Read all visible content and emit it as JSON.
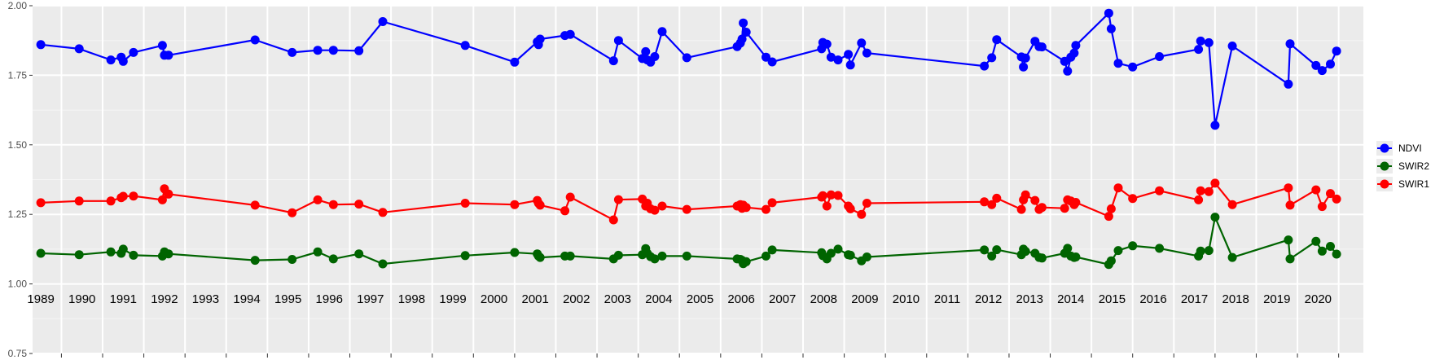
{
  "chart_data": {
    "type": "line",
    "title": "",
    "xlabel": "",
    "ylabel": "",
    "ylim": [
      0.75,
      2.0
    ],
    "y_ticks": [
      "0.75",
      "1.00",
      "1.25",
      "1.50",
      "1.75",
      "2.00"
    ],
    "x_domain": [
      1988.5,
      2020.8
    ],
    "year_labels": [
      {
        "label": "1989",
        "x": 1988.7
      },
      {
        "label": "1990",
        "x": 1989.7
      },
      {
        "label": "1991",
        "x": 1990.7
      },
      {
        "label": "1992",
        "x": 1991.7
      },
      {
        "label": "1993",
        "x": 1992.7
      },
      {
        "label": "1994",
        "x": 1993.7
      },
      {
        "label": "1995",
        "x": 1994.7
      },
      {
        "label": "1996",
        "x": 1995.7
      },
      {
        "label": "1997",
        "x": 1996.7
      },
      {
        "label": "1998",
        "x": 1997.7
      },
      {
        "label": "1999",
        "x": 1998.7
      },
      {
        "label": "2000",
        "x": 1999.7
      },
      {
        "label": "2001",
        "x": 2000.7
      },
      {
        "label": "2002",
        "x": 2001.7
      },
      {
        "label": "2003",
        "x": 2002.7
      },
      {
        "label": "2004",
        "x": 2003.7
      },
      {
        "label": "2005",
        "x": 2004.7
      },
      {
        "label": "2006",
        "x": 2005.7
      },
      {
        "label": "2007",
        "x": 2006.7
      },
      {
        "label": "2008",
        "x": 2007.7
      },
      {
        "label": "2009",
        "x": 2008.7
      },
      {
        "label": "2010",
        "x": 2009.7
      },
      {
        "label": "2011",
        "x": 2010.7
      },
      {
        "label": "2012",
        "x": 2011.7
      },
      {
        "label": "2013",
        "x": 2012.7
      },
      {
        "label": "2014",
        "x": 2013.7
      },
      {
        "label": "2015",
        "x": 2014.7
      },
      {
        "label": "2016",
        "x": 2015.7
      },
      {
        "label": "2017",
        "x": 2016.7
      },
      {
        "label": "2018",
        "x": 2017.7
      },
      {
        "label": "2019",
        "x": 2018.7
      },
      {
        "label": "2020",
        "x": 2019.7
      }
    ],
    "x_ticks": [
      1989.2,
      1990.2,
      1991.2,
      1992.2,
      1993.2,
      1994.2,
      1995.2,
      1996.2,
      1997.2,
      1998.2,
      1999.2,
      2000.2,
      2001.2,
      2002.2,
      2003.2,
      2004.2,
      2005.2,
      2006.2,
      2007.2,
      2008.2,
      2009.2,
      2010.2,
      2011.2,
      2012.2,
      2013.2,
      2014.2,
      2015.2,
      2016.2,
      2017.2,
      2018.2,
      2019.2,
      2020.2
    ],
    "legend": {
      "position": "right"
    },
    "series": [
      {
        "name": "NDVI",
        "color": "#0000ff",
        "points": [
          [
            1988.7,
            1.86
          ],
          [
            1989.63,
            1.845
          ],
          [
            1990.4,
            1.805
          ],
          [
            1990.65,
            1.815
          ],
          [
            1990.7,
            1.8
          ],
          [
            1990.95,
            1.832
          ],
          [
            1991.65,
            1.857
          ],
          [
            1991.7,
            1.822
          ],
          [
            1991.8,
            1.822
          ],
          [
            1993.9,
            1.877
          ],
          [
            1994.8,
            1.832
          ],
          [
            1995.42,
            1.84
          ],
          [
            1995.8,
            1.84
          ],
          [
            1996.42,
            1.838
          ],
          [
            1997.0,
            1.943
          ],
          [
            1999.0,
            1.857
          ],
          [
            2000.2,
            1.797
          ],
          [
            2000.75,
            1.87
          ],
          [
            2000.78,
            1.86
          ],
          [
            2000.82,
            1.88
          ],
          [
            2001.42,
            1.893
          ],
          [
            2001.55,
            1.897
          ],
          [
            2002.6,
            1.802
          ],
          [
            2002.72,
            1.875
          ],
          [
            2003.3,
            1.81
          ],
          [
            2003.38,
            1.835
          ],
          [
            2003.42,
            1.805
          ],
          [
            2003.5,
            1.797
          ],
          [
            2003.6,
            1.817
          ],
          [
            2003.78,
            1.907
          ],
          [
            2004.38,
            1.813
          ],
          [
            2005.6,
            1.853
          ],
          [
            2005.68,
            1.866
          ],
          [
            2005.72,
            1.88
          ],
          [
            2005.75,
            1.938
          ],
          [
            2005.82,
            1.905
          ],
          [
            2006.3,
            1.815
          ],
          [
            2006.45,
            1.798
          ],
          [
            2007.65,
            1.845
          ],
          [
            2007.68,
            1.868
          ],
          [
            2007.78,
            1.862
          ],
          [
            2007.88,
            1.815
          ],
          [
            2008.05,
            1.805
          ],
          [
            2008.3,
            1.825
          ],
          [
            2008.35,
            1.787
          ],
          [
            2008.62,
            1.866
          ],
          [
            2008.75,
            1.83
          ],
          [
            2011.6,
            1.783
          ],
          [
            2011.78,
            1.813
          ],
          [
            2011.9,
            1.878
          ],
          [
            2012.5,
            1.816
          ],
          [
            2012.55,
            1.78
          ],
          [
            2012.6,
            1.812
          ],
          [
            2012.83,
            1.872
          ],
          [
            2012.93,
            1.853
          ],
          [
            2013.0,
            1.852
          ],
          [
            2013.55,
            1.8
          ],
          [
            2013.62,
            1.765
          ],
          [
            2013.7,
            1.815
          ],
          [
            2013.78,
            1.83
          ],
          [
            2013.82,
            1.857
          ],
          [
            2014.62,
            1.973
          ],
          [
            2014.68,
            1.917
          ],
          [
            2014.85,
            1.793
          ],
          [
            2015.2,
            1.78
          ],
          [
            2015.85,
            1.817
          ],
          [
            2016.8,
            1.843
          ],
          [
            2016.85,
            1.873
          ],
          [
            2017.05,
            1.867
          ],
          [
            2017.2,
            1.57
          ],
          [
            2017.62,
            1.855
          ],
          [
            2018.98,
            1.718
          ],
          [
            2019.02,
            1.863
          ],
          [
            2019.65,
            1.785
          ],
          [
            2019.8,
            1.767
          ],
          [
            2020.0,
            1.79
          ],
          [
            2020.15,
            1.837
          ]
        ]
      },
      {
        "name": "SWIR2",
        "color": "#006400",
        "points": [
          [
            1988.7,
            1.11
          ],
          [
            1989.63,
            1.105
          ],
          [
            1990.4,
            1.115
          ],
          [
            1990.65,
            1.11
          ],
          [
            1990.7,
            1.125
          ],
          [
            1990.95,
            1.103
          ],
          [
            1991.65,
            1.1
          ],
          [
            1991.7,
            1.115
          ],
          [
            1991.8,
            1.108
          ],
          [
            1993.9,
            1.085
          ],
          [
            1994.8,
            1.088
          ],
          [
            1995.42,
            1.115
          ],
          [
            1995.8,
            1.09
          ],
          [
            1996.42,
            1.108
          ],
          [
            1997.0,
            1.072
          ],
          [
            1999.0,
            1.102
          ],
          [
            2000.2,
            1.113
          ],
          [
            2000.75,
            1.108
          ],
          [
            2000.78,
            1.1
          ],
          [
            2000.82,
            1.095
          ],
          [
            2001.42,
            1.1
          ],
          [
            2001.55,
            1.1
          ],
          [
            2002.6,
            1.09
          ],
          [
            2002.72,
            1.103
          ],
          [
            2003.3,
            1.105
          ],
          [
            2003.38,
            1.127
          ],
          [
            2003.42,
            1.11
          ],
          [
            2003.5,
            1.098
          ],
          [
            2003.6,
            1.09
          ],
          [
            2003.78,
            1.1
          ],
          [
            2004.38,
            1.1
          ],
          [
            2005.6,
            1.09
          ],
          [
            2005.68,
            1.088
          ],
          [
            2005.72,
            1.085
          ],
          [
            2005.75,
            1.073
          ],
          [
            2005.82,
            1.08
          ],
          [
            2006.3,
            1.1
          ],
          [
            2006.45,
            1.122
          ],
          [
            2007.65,
            1.112
          ],
          [
            2007.68,
            1.102
          ],
          [
            2007.78,
            1.09
          ],
          [
            2007.88,
            1.11
          ],
          [
            2008.05,
            1.125
          ],
          [
            2008.3,
            1.105
          ],
          [
            2008.35,
            1.103
          ],
          [
            2008.62,
            1.083
          ],
          [
            2008.75,
            1.097
          ],
          [
            2011.6,
            1.122
          ],
          [
            2011.78,
            1.1
          ],
          [
            2011.9,
            1.123
          ],
          [
            2012.5,
            1.105
          ],
          [
            2012.55,
            1.125
          ],
          [
            2012.6,
            1.117
          ],
          [
            2012.83,
            1.11
          ],
          [
            2012.93,
            1.095
          ],
          [
            2013.0,
            1.093
          ],
          [
            2013.55,
            1.11
          ],
          [
            2013.62,
            1.128
          ],
          [
            2013.7,
            1.1
          ],
          [
            2013.78,
            1.095
          ],
          [
            2013.82,
            1.097
          ],
          [
            2014.62,
            1.07
          ],
          [
            2014.68,
            1.083
          ],
          [
            2014.85,
            1.12
          ],
          [
            2015.2,
            1.137
          ],
          [
            2015.85,
            1.128
          ],
          [
            2016.8,
            1.1
          ],
          [
            2016.85,
            1.118
          ],
          [
            2017.05,
            1.12
          ],
          [
            2017.2,
            1.24
          ],
          [
            2017.62,
            1.095
          ],
          [
            2018.98,
            1.158
          ],
          [
            2019.02,
            1.09
          ],
          [
            2019.65,
            1.153
          ],
          [
            2019.8,
            1.118
          ],
          [
            2020.0,
            1.135
          ],
          [
            2020.15,
            1.107
          ]
        ]
      },
      {
        "name": "SWIR1",
        "color": "#ff0000",
        "points": [
          [
            1988.7,
            1.292
          ],
          [
            1989.63,
            1.298
          ],
          [
            1990.4,
            1.298
          ],
          [
            1990.65,
            1.31
          ],
          [
            1990.7,
            1.315
          ],
          [
            1990.95,
            1.316
          ],
          [
            1991.65,
            1.302
          ],
          [
            1991.7,
            1.342
          ],
          [
            1991.8,
            1.323
          ],
          [
            1993.9,
            1.283
          ],
          [
            1994.8,
            1.256
          ],
          [
            1995.42,
            1.302
          ],
          [
            1995.8,
            1.285
          ],
          [
            1996.42,
            1.287
          ],
          [
            1997.0,
            1.257
          ],
          [
            1999.0,
            1.29
          ],
          [
            2000.2,
            1.285
          ],
          [
            2000.75,
            1.3
          ],
          [
            2000.78,
            1.29
          ],
          [
            2000.82,
            1.283
          ],
          [
            2001.42,
            1.263
          ],
          [
            2001.55,
            1.312
          ],
          [
            2002.6,
            1.23
          ],
          [
            2002.72,
            1.303
          ],
          [
            2003.3,
            1.305
          ],
          [
            2003.38,
            1.28
          ],
          [
            2003.42,
            1.29
          ],
          [
            2003.5,
            1.27
          ],
          [
            2003.6,
            1.265
          ],
          [
            2003.78,
            1.28
          ],
          [
            2004.38,
            1.268
          ],
          [
            2005.6,
            1.28
          ],
          [
            2005.68,
            1.285
          ],
          [
            2005.72,
            1.272
          ],
          [
            2005.75,
            1.283
          ],
          [
            2005.82,
            1.275
          ],
          [
            2006.3,
            1.268
          ],
          [
            2006.45,
            1.292
          ],
          [
            2007.65,
            1.312
          ],
          [
            2007.68,
            1.317
          ],
          [
            2007.78,
            1.28
          ],
          [
            2007.88,
            1.32
          ],
          [
            2008.05,
            1.318
          ],
          [
            2008.3,
            1.28
          ],
          [
            2008.35,
            1.27
          ],
          [
            2008.62,
            1.25
          ],
          [
            2008.75,
            1.29
          ],
          [
            2011.6,
            1.295
          ],
          [
            2011.78,
            1.285
          ],
          [
            2011.9,
            1.308
          ],
          [
            2012.5,
            1.268
          ],
          [
            2012.55,
            1.302
          ],
          [
            2012.6,
            1.32
          ],
          [
            2012.83,
            1.3
          ],
          [
            2012.93,
            1.268
          ],
          [
            2013.0,
            1.275
          ],
          [
            2013.55,
            1.272
          ],
          [
            2013.62,
            1.302
          ],
          [
            2013.7,
            1.298
          ],
          [
            2013.78,
            1.285
          ],
          [
            2013.82,
            1.293
          ],
          [
            2014.62,
            1.243
          ],
          [
            2014.68,
            1.27
          ],
          [
            2014.85,
            1.345
          ],
          [
            2015.2,
            1.307
          ],
          [
            2015.85,
            1.335
          ],
          [
            2016.8,
            1.302
          ],
          [
            2016.85,
            1.335
          ],
          [
            2017.05,
            1.332
          ],
          [
            2017.2,
            1.362
          ],
          [
            2017.62,
            1.285
          ],
          [
            2018.98,
            1.345
          ],
          [
            2019.02,
            1.283
          ],
          [
            2019.65,
            1.338
          ],
          [
            2019.8,
            1.278
          ],
          [
            2020.0,
            1.325
          ],
          [
            2020.15,
            1.305
          ]
        ]
      }
    ]
  }
}
